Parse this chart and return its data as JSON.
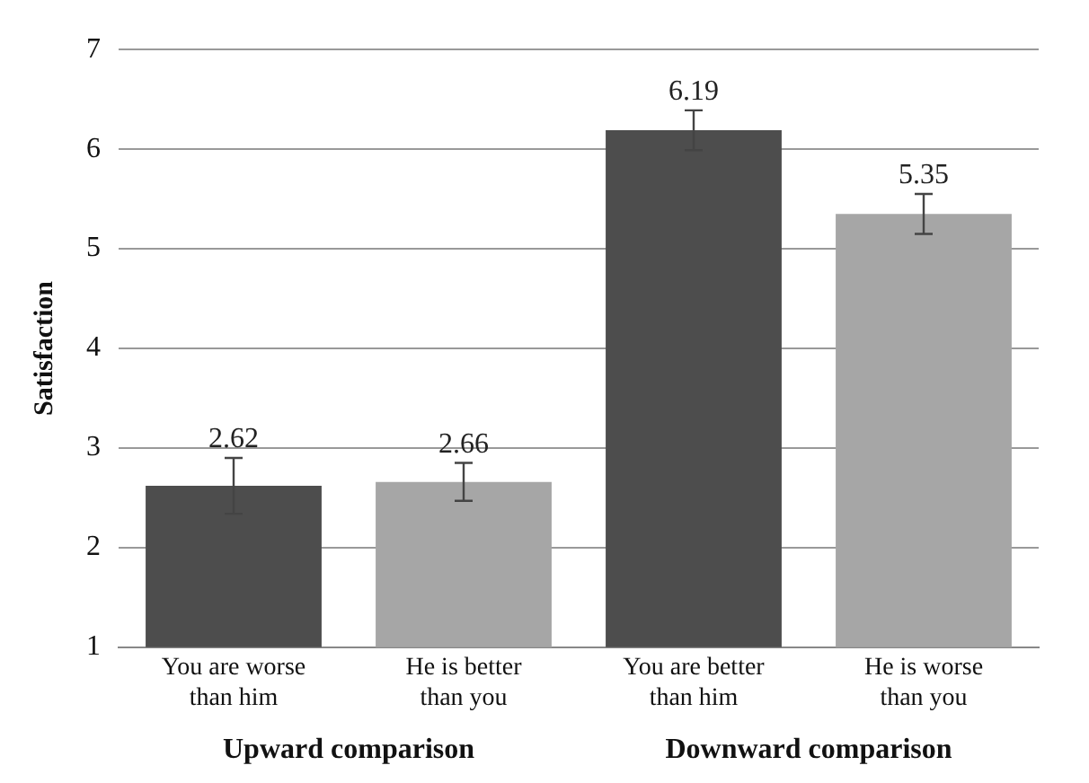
{
  "chart_data": {
    "type": "bar",
    "ylabel": "Satisfaction",
    "categories": [
      "You are worse than him",
      "He is better than you",
      "You are better than him",
      "He is worse than you"
    ],
    "values": [
      2.62,
      2.66,
      6.19,
      5.35
    ],
    "colors": [
      "#4d4d4d",
      "#a6a6a6",
      "#4d4d4d",
      "#a6a6a6"
    ],
    "errors": [
      0.28,
      0.19,
      0.2,
      0.2
    ],
    "data_labels": true,
    "annotations": [
      "Upward comparison",
      "Downward comparison"
    ],
    "ylim": [
      1,
      7
    ],
    "yticks": [
      1,
      2,
      3,
      4,
      5,
      6,
      7
    ],
    "grid": "y",
    "legend": false
  }
}
